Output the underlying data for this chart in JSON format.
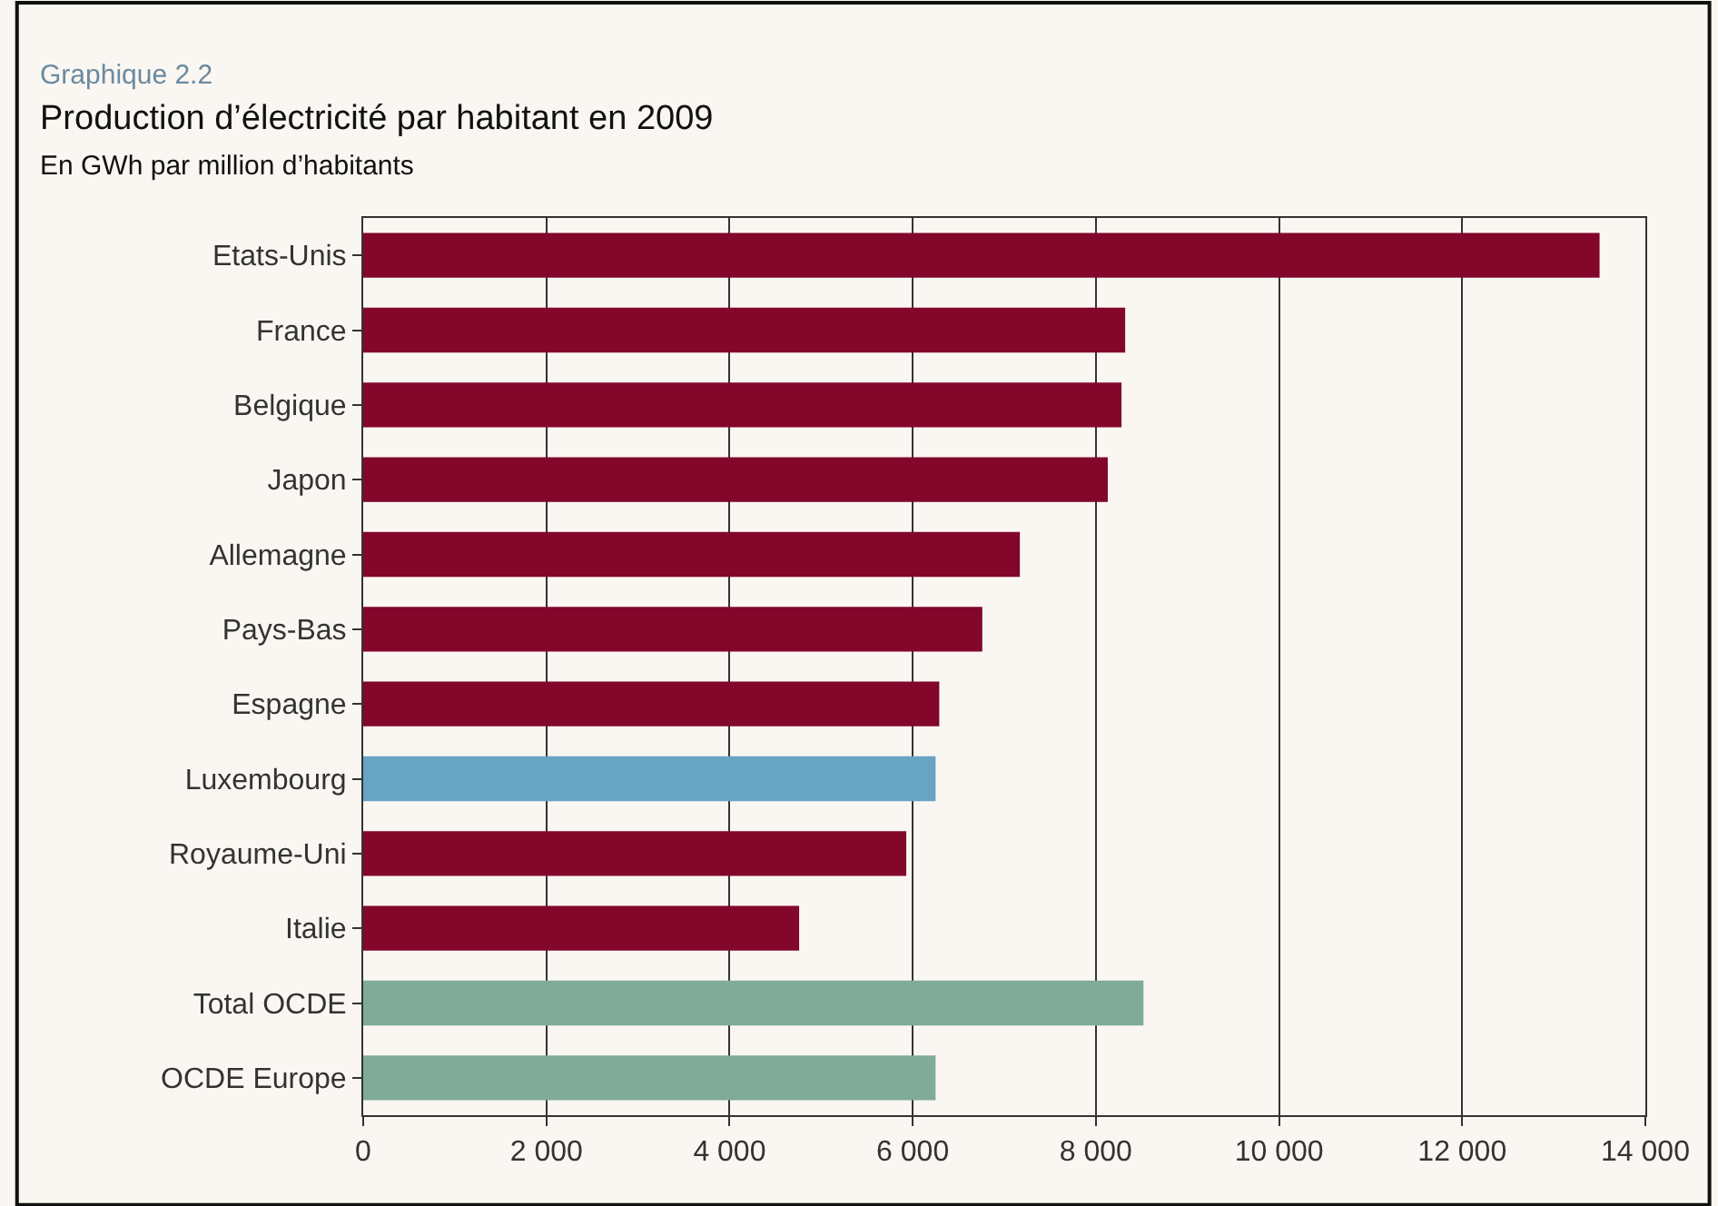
{
  "chart_data": {
    "type": "bar",
    "orientation": "horizontal",
    "title": "Production d’électricité par habitant en 2009",
    "subtitle": "En GWh par million d’habitants",
    "annotations": [
      "Graphique 2.2"
    ],
    "categories": [
      "Etats-Unis",
      "France",
      "Belgique",
      "Japon",
      "Allemagne",
      "Pays-Bas",
      "Espagne",
      "Luxembourg",
      "Royaume-Uni",
      "Italie",
      "Total OCDE",
      "OCDE Europe"
    ],
    "values": [
      13500,
      8320,
      8280,
      8130,
      7170,
      6760,
      6290,
      6250,
      5930,
      4760,
      8520,
      6250
    ],
    "colors": [
      "#83062b",
      "#83062b",
      "#83062b",
      "#83062b",
      "#83062b",
      "#83062b",
      "#83062b",
      "#68a4c4",
      "#83062b",
      "#83062b",
      "#80ab98",
      "#80ab98"
    ],
    "xlim": [
      0,
      14000
    ],
    "xticks": [
      0,
      {
        "value": 2000,
        "label": "2 000"
      },
      {
        "value": 4000,
        "label": "4 000"
      },
      {
        "value": 6000,
        "label": "6 000"
      },
      {
        "value": 8000,
        "label": "8 000"
      },
      {
        "value": 10000,
        "label": "10 000"
      },
      {
        "value": 12000,
        "label": "12 000"
      },
      {
        "value": 14000,
        "label": "14 000"
      }
    ],
    "grid": "x",
    "legend": false
  }
}
